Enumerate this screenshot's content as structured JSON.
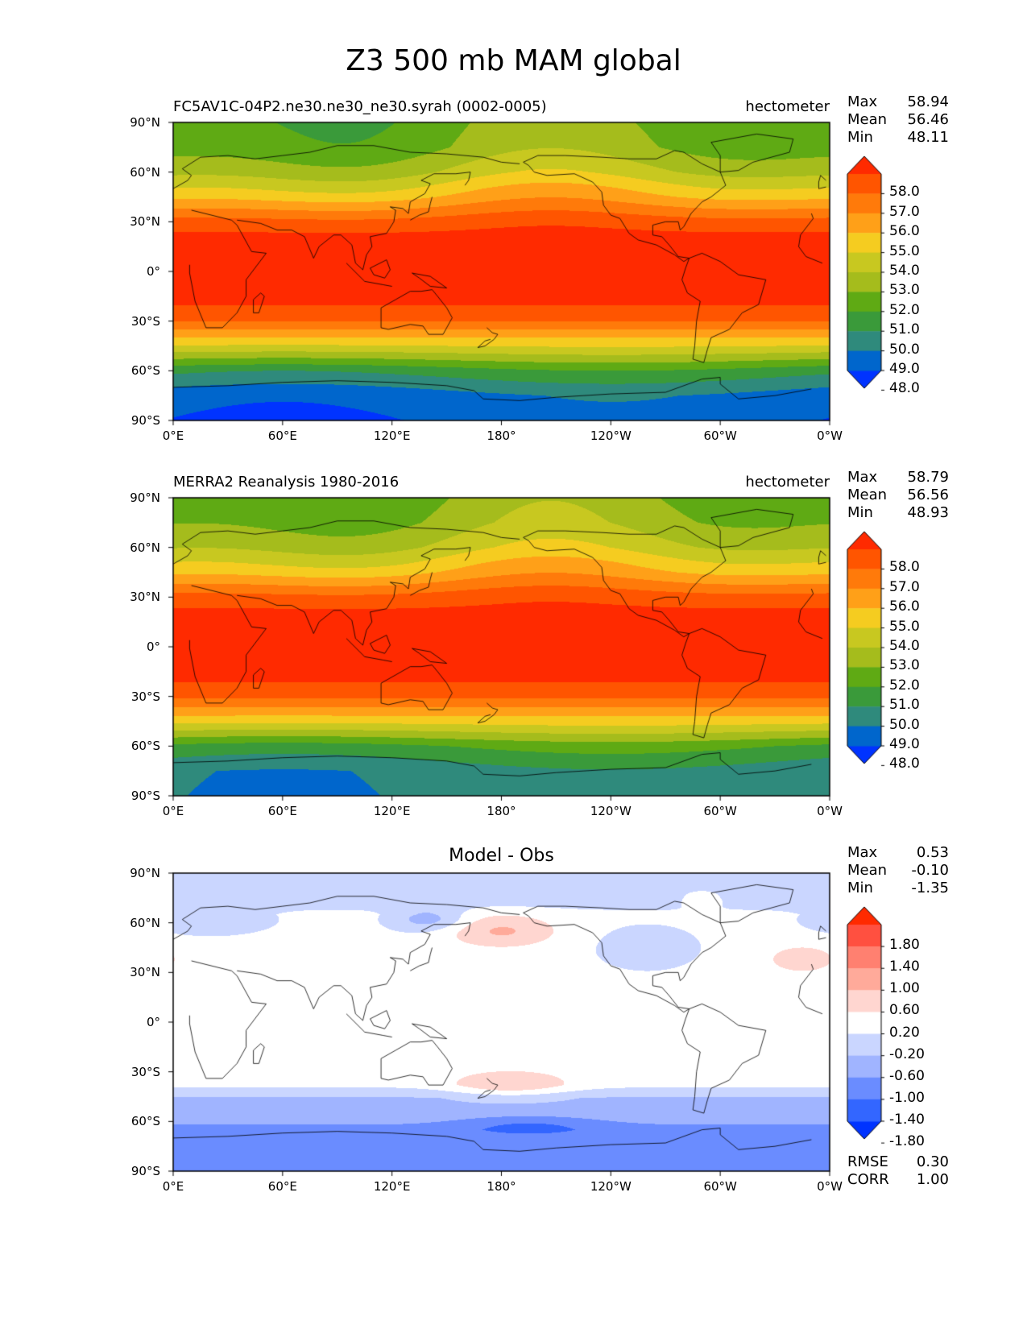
{
  "title": "Z3 500 mb MAM global",
  "lat_ticks": [
    "90°N",
    "60°N",
    "30°N",
    "0°",
    "30°S",
    "60°S",
    "90°S"
  ],
  "lon_ticks": [
    "0°E",
    "60°E",
    "120°E",
    "180°",
    "120°W",
    "60°W",
    "0°W"
  ],
  "panels": [
    {
      "id": "model",
      "left_title": "FC5AV1C-04P2.ne30.ne30_ne30.syrah (0002-0005)",
      "center_title": "",
      "units": "hectometer",
      "stats": {
        "max_label": "Max",
        "max": "58.94",
        "mean_label": "Mean",
        "mean": "56.46",
        "min_label": "Min",
        "min": "48.11"
      },
      "colorbar_labels": [
        "58.0",
        "57.0",
        "56.0",
        "55.0",
        "54.0",
        "53.0",
        "52.0",
        "51.0",
        "50.0",
        "49.0",
        "48.0"
      ],
      "colorbar_colors": [
        "#0033ff",
        "#0066cc",
        "#2f8a7c",
        "#3a9a3a",
        "#5faa14",
        "#a5bc1c",
        "#c8c820",
        "#f5cc20",
        "#ffa018",
        "#ff7a0a",
        "#ff5500",
        "#ff2a00"
      ]
    },
    {
      "id": "obs",
      "left_title": "MERRA2 Reanalysis 1980-2016",
      "center_title": "",
      "units": "hectometer",
      "stats": {
        "max_label": "Max",
        "max": "58.79",
        "mean_label": "Mean",
        "mean": "56.56",
        "min_label": "Min",
        "min": "48.93"
      },
      "colorbar_labels": [
        "58.0",
        "57.0",
        "56.0",
        "55.0",
        "54.0",
        "53.0",
        "52.0",
        "51.0",
        "50.0",
        "49.0",
        "48.0"
      ],
      "colorbar_colors": [
        "#0033ff",
        "#0066cc",
        "#2f8a7c",
        "#3a9a3a",
        "#5faa14",
        "#a5bc1c",
        "#c8c820",
        "#f5cc20",
        "#ffa018",
        "#ff7a0a",
        "#ff5500",
        "#ff2a00"
      ]
    },
    {
      "id": "diff",
      "left_title": "",
      "center_title": "Model - Obs",
      "units": "",
      "stats": {
        "max_label": "Max",
        "max": "0.53",
        "mean_label": "Mean",
        "mean": "-0.10",
        "min_label": "Min",
        "min": "-1.35"
      },
      "colorbar_labels": [
        "1.80",
        "1.40",
        "1.00",
        "0.60",
        "0.20",
        "-0.20",
        "-0.60",
        "-1.00",
        "-1.40",
        "-1.80"
      ],
      "colorbar_colors": [
        "#0033ff",
        "#3366ff",
        "#6a8cff",
        "#a0b4ff",
        "#cad6ff",
        "#ffffff",
        "#ffd6d0",
        "#ffaa9a",
        "#ff8070",
        "#ff5040",
        "#ff2a00"
      ],
      "footer": {
        "rmse_label": "RMSE",
        "rmse": "0.30",
        "corr_label": "CORR",
        "corr": "1.00"
      }
    }
  ],
  "chart_data": [
    {
      "type": "heatmap",
      "title": "FC5AV1C-04P2.ne30.ne30_ne30.syrah (0002-0005)",
      "variable": "Z3 500 mb MAM",
      "units": "hectometer",
      "x": [
        0,
        60,
        120,
        180,
        240,
        300,
        360
      ],
      "xlabel": "",
      "xlim": [
        0,
        360
      ],
      "ylim": [
        -90,
        90
      ],
      "contour_levels": [
        48,
        49,
        50,
        51,
        52,
        53,
        54,
        55,
        56,
        57,
        58
      ],
      "zonal_profile_lat": [
        -90,
        -75,
        -60,
        -45,
        -30,
        -15,
        0,
        15,
        30,
        45,
        60,
        75,
        90
      ],
      "zonal_profile_value": [
        48.2,
        48.6,
        50.5,
        54.0,
        57.0,
        58.6,
        58.9,
        58.8,
        57.5,
        55.0,
        53.0,
        51.8,
        51.5
      ],
      "max": 58.94,
      "mean": 56.46,
      "min": 48.11
    },
    {
      "type": "heatmap",
      "title": "MERRA2 Reanalysis 1980-2016",
      "variable": "Z3 500 mb MAM",
      "units": "hectometer",
      "x": [
        0,
        60,
        120,
        180,
        240,
        300,
        360
      ],
      "xlim": [
        0,
        360
      ],
      "ylim": [
        -90,
        90
      ],
      "contour_levels": [
        48,
        49,
        50,
        51,
        52,
        53,
        54,
        55,
        56,
        57,
        58
      ],
      "zonal_profile_lat": [
        -90,
        -75,
        -60,
        -45,
        -30,
        -15,
        0,
        15,
        30,
        45,
        60,
        75,
        90
      ],
      "zonal_profile_value": [
        49.3,
        49.4,
        51.0,
        54.4,
        57.2,
        58.6,
        58.8,
        58.7,
        57.5,
        55.0,
        53.2,
        52.2,
        51.8
      ],
      "max": 58.79,
      "mean": 56.56,
      "min": 48.93
    },
    {
      "type": "heatmap",
      "title": "Model - Obs",
      "units": "hectometer",
      "xlim": [
        0,
        360
      ],
      "ylim": [
        -90,
        90
      ],
      "contour_levels": [
        -1.8,
        -1.4,
        -1.0,
        -0.6,
        -0.2,
        0.2,
        0.6,
        1.0,
        1.4,
        1.8
      ],
      "max": 0.53,
      "mean": -0.1,
      "min": -1.35,
      "rmse": 0.3,
      "corr": 1.0
    }
  ]
}
